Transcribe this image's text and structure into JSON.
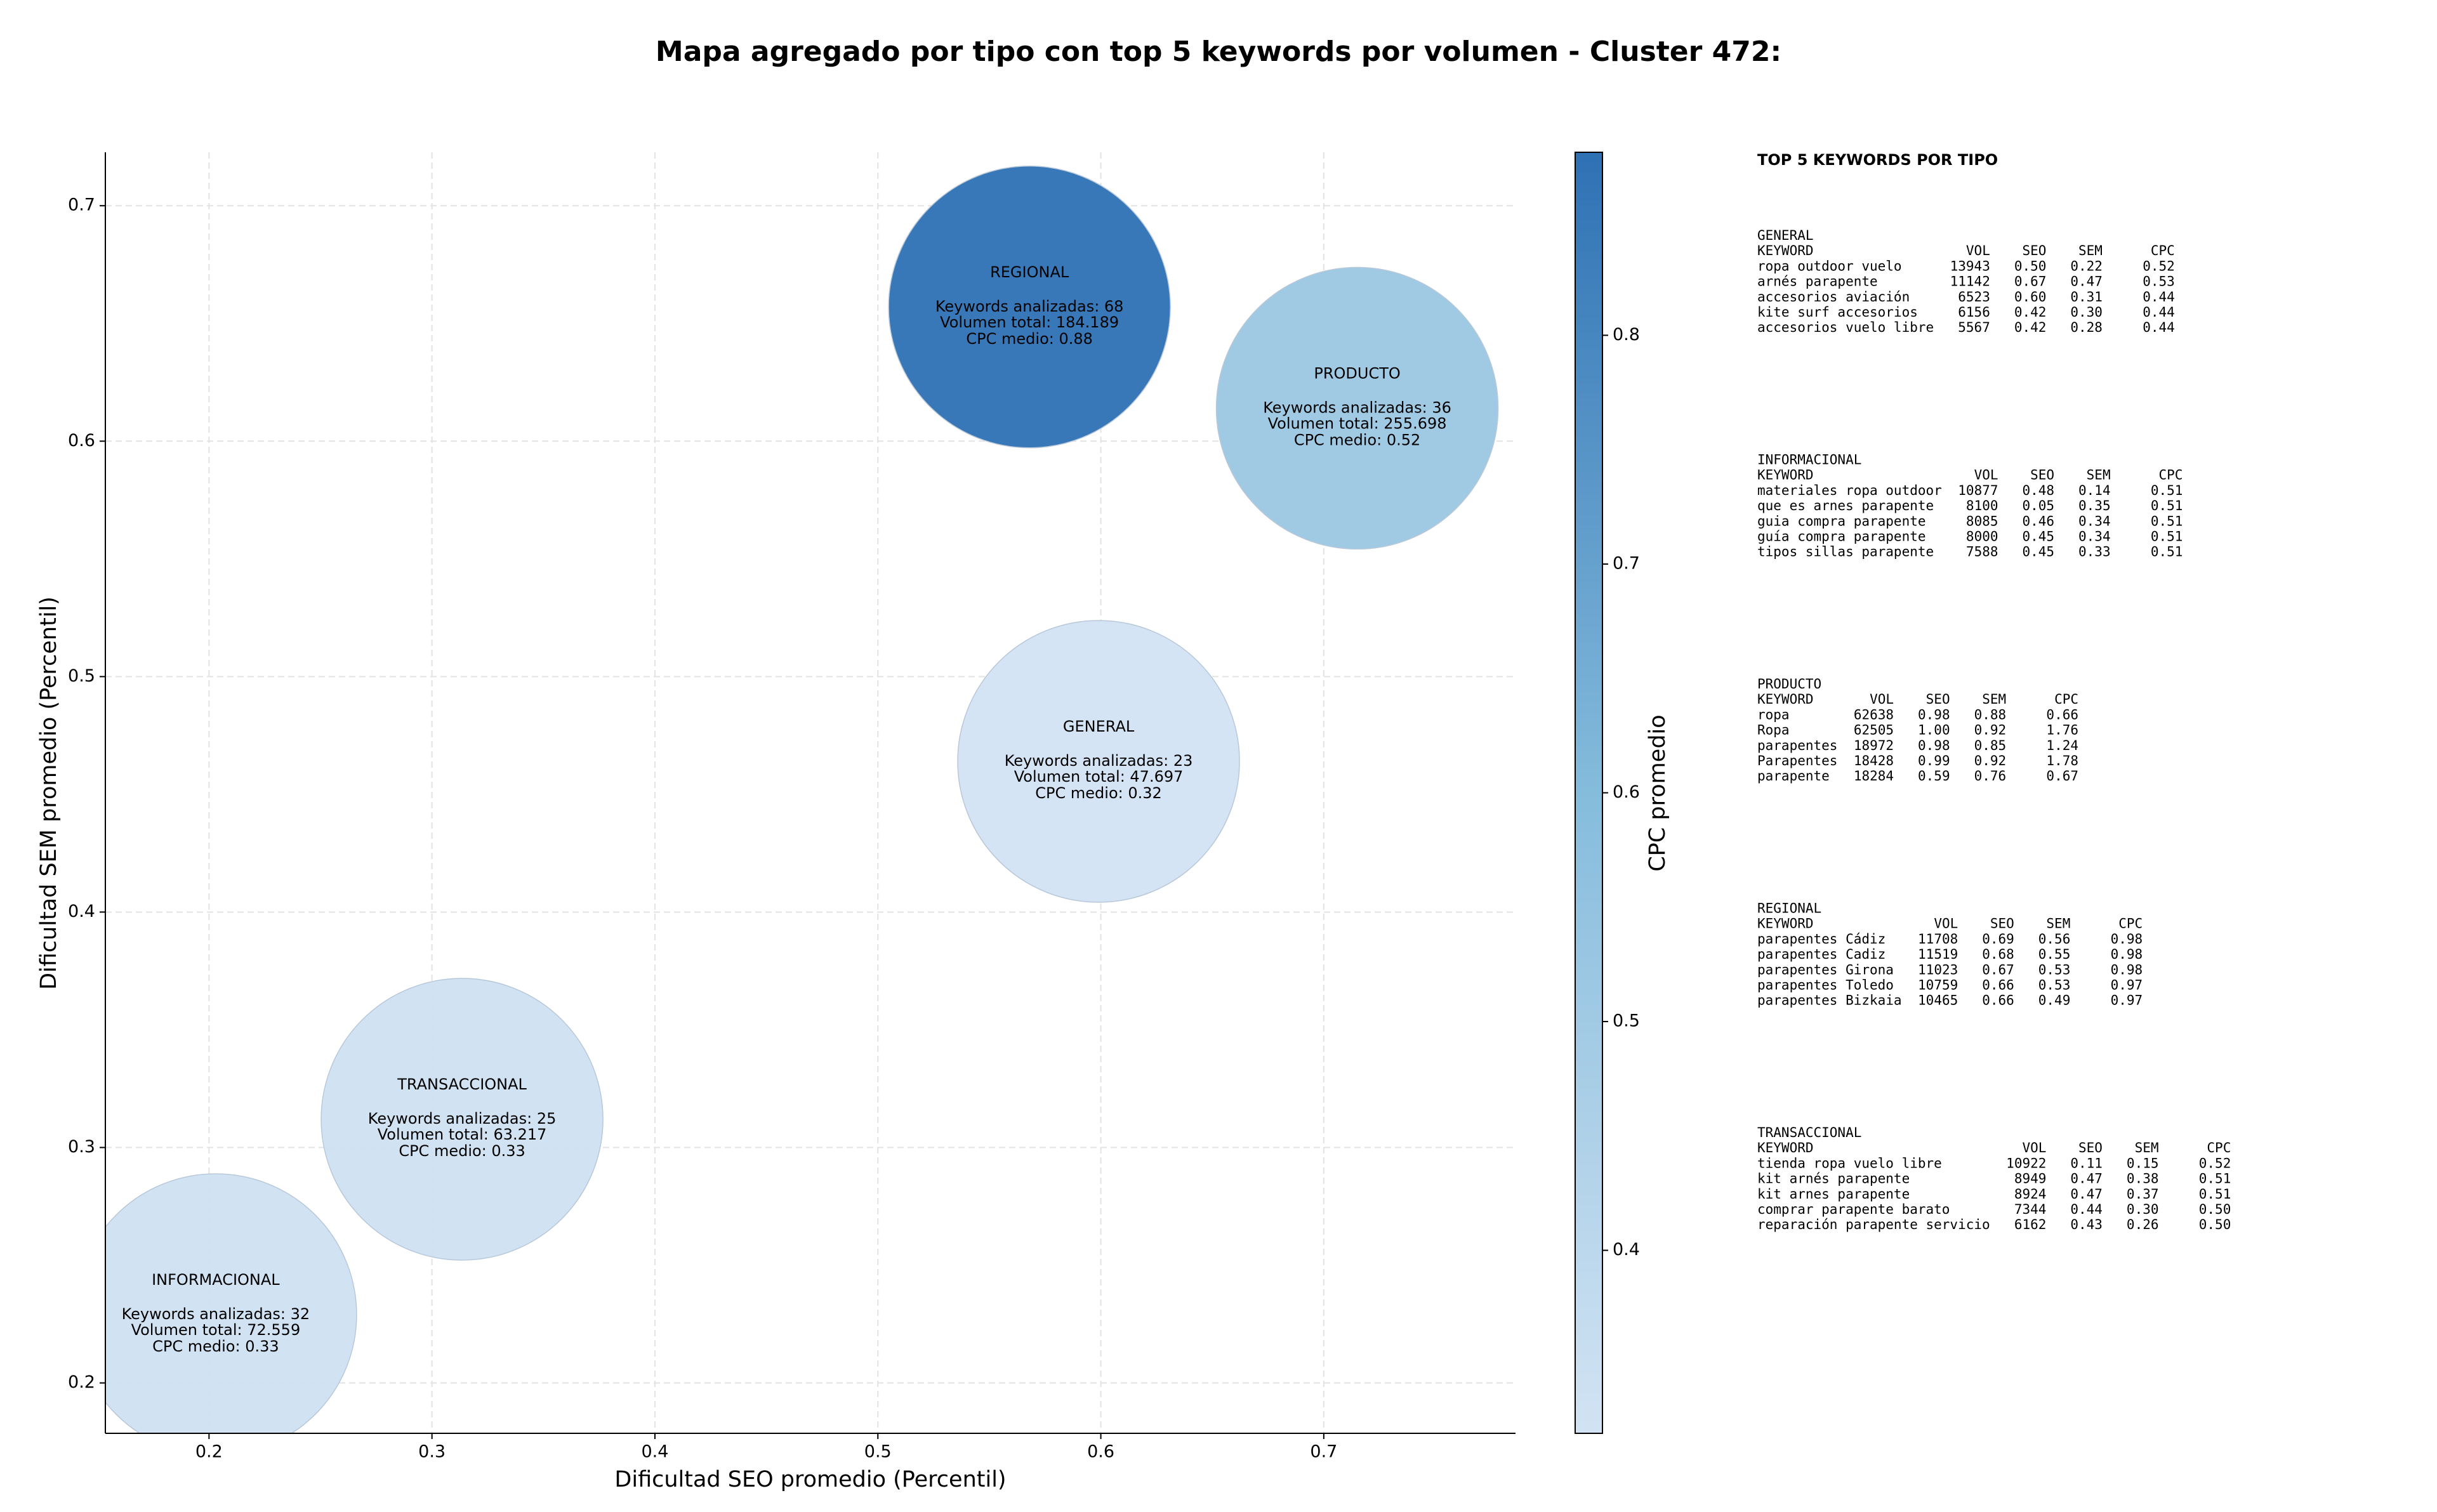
{
  "chart_data": {
    "type": "bubble",
    "title": "Mapa agregado por tipo con top 5 keywords por volumen - Cluster 472:",
    "xlabel": "Dificultad SEO promedio (Percentil)",
    "ylabel": "Dificultad SEM promedio (Percentil)",
    "xlim": [
      0.1535,
      0.786
    ],
    "ylim": [
      0.1786,
      0.7227
    ],
    "xticks": [
      0.2,
      0.3,
      0.4,
      0.5,
      0.6,
      0.7
    ],
    "yticks": [
      0.2,
      0.3,
      0.4,
      0.5,
      0.6,
      0.7
    ],
    "grid": true,
    "x": [
      0.203,
      0.3135,
      0.599,
      0.715,
      0.568
    ],
    "y": [
      0.229,
      0.312,
      0.464,
      0.614,
      0.657
    ],
    "cpc": [
      0.33,
      0.33,
      0.32,
      0.52,
      0.88
    ],
    "annotations": [
      [
        "INFORMACIONAL",
        "Keywords analizadas: 32",
        "Volumen total: 72.559",
        "CPC medio: 0.33"
      ],
      [
        "TRANSACCIONAL",
        "Keywords analizadas: 25",
        "Volumen total: 63.217",
        "CPC medio: 0.33"
      ],
      [
        "GENERAL",
        "Keywords analizadas: 23",
        "Volumen total: 47.697",
        "CPC medio: 0.32"
      ],
      [
        "PRODUCTO",
        "Keywords analizadas: 36",
        "Volumen total: 255.698",
        "CPC medio: 0.52"
      ],
      [
        "REGIONAL",
        "Keywords analizadas: 68",
        "Volumen total: 184.189",
        "CPC medio: 0.88"
      ]
    ],
    "colorbar": {
      "label": "CPC promedio",
      "clim": [
        0.32,
        0.88
      ],
      "ticks": [
        0.4,
        0.5,
        0.6,
        0.7,
        0.8
      ],
      "colormap": [
        "#d2e3f3",
        "#85bcdc",
        "#2e71b4"
      ]
    }
  },
  "keywords_panel": {
    "title": "TOP 5 KEYWORDS POR TIPO",
    "blocks": [
      {
        "name": "GENERAL",
        "columns": [
          "KEYWORD",
          "VOL",
          "SEO",
          "SEM",
          "CPC"
        ],
        "rows": [
          [
            "ropa outdoor vuelo",
            "13943",
            "0.50",
            "0.22",
            "0.52"
          ],
          [
            "arnés parapente",
            "11142",
            "0.67",
            "0.47",
            "0.53"
          ],
          [
            "accesorios aviación",
            "6523",
            "0.60",
            "0.31",
            "0.44"
          ],
          [
            "kite surf accesorios",
            "6156",
            "0.42",
            "0.30",
            "0.44"
          ],
          [
            "accesorios vuelo libre",
            "5567",
            "0.42",
            "0.28",
            "0.44"
          ]
        ]
      },
      {
        "name": "INFORMACIONAL",
        "columns": [
          "KEYWORD",
          "VOL",
          "SEO",
          "SEM",
          "CPC"
        ],
        "rows": [
          [
            "materiales ropa outdoor",
            "10877",
            "0.48",
            "0.14",
            "0.51"
          ],
          [
            "que es arnes parapente",
            "8100",
            "0.05",
            "0.35",
            "0.51"
          ],
          [
            "guia compra parapente",
            "8085",
            "0.46",
            "0.34",
            "0.51"
          ],
          [
            "guía compra parapente",
            "8000",
            "0.45",
            "0.34",
            "0.51"
          ],
          [
            "tipos sillas parapente",
            "7588",
            "0.45",
            "0.33",
            "0.51"
          ]
        ]
      },
      {
        "name": "PRODUCTO",
        "columns": [
          "KEYWORD",
          "VOL",
          "SEO",
          "SEM",
          "CPC"
        ],
        "rows": [
          [
            "ropa",
            "62638",
            "0.98",
            "0.88",
            "0.66"
          ],
          [
            "Ropa",
            "62505",
            "1.00",
            "0.92",
            "1.76"
          ],
          [
            "parapentes",
            "18972",
            "0.98",
            "0.85",
            "1.24"
          ],
          [
            "Parapentes",
            "18428",
            "0.99",
            "0.92",
            "1.78"
          ],
          [
            "parapente",
            "18284",
            "0.59",
            "0.76",
            "0.67"
          ]
        ]
      },
      {
        "name": "REGIONAL",
        "columns": [
          "KEYWORD",
          "VOL",
          "SEO",
          "SEM",
          "CPC"
        ],
        "rows": [
          [
            "parapentes Cádiz",
            "11708",
            "0.69",
            "0.56",
            "0.98"
          ],
          [
            "parapentes Cadiz",
            "11519",
            "0.68",
            "0.55",
            "0.98"
          ],
          [
            "parapentes Girona",
            "11023",
            "0.67",
            "0.53",
            "0.98"
          ],
          [
            "parapentes Toledo",
            "10759",
            "0.66",
            "0.53",
            "0.97"
          ],
          [
            "parapentes Bizkaia",
            "10465",
            "0.66",
            "0.49",
            "0.97"
          ]
        ]
      },
      {
        "name": "TRANSACCIONAL",
        "columns": [
          "KEYWORD",
          "VOL",
          "SEO",
          "SEM",
          "CPC"
        ],
        "rows": [
          [
            "tienda ropa vuelo libre",
            "10922",
            "0.11",
            "0.15",
            "0.52"
          ],
          [
            "kit arnés parapente",
            "8949",
            "0.47",
            "0.38",
            "0.51"
          ],
          [
            "kit arnes parapente",
            "8924",
            "0.47",
            "0.37",
            "0.51"
          ],
          [
            "comprar parapente barato",
            "7344",
            "0.44",
            "0.30",
            "0.50"
          ],
          [
            "reparación parapente servicio",
            "6162",
            "0.43",
            "0.26",
            "0.50"
          ]
        ]
      }
    ]
  }
}
